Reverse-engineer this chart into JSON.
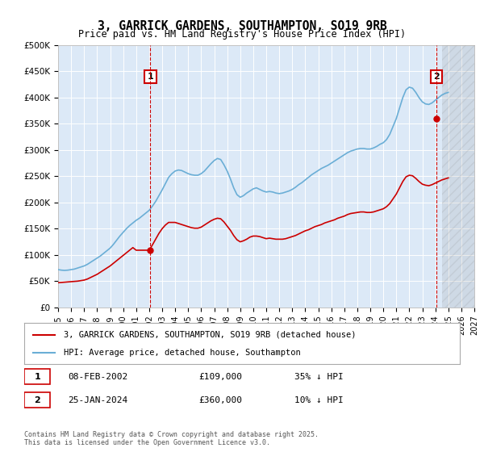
{
  "title": "3, GARRICK GARDENS, SOUTHAMPTON, SO19 9RB",
  "subtitle": "Price paid vs. HM Land Registry's House Price Index (HPI)",
  "background_color": "#dce9f7",
  "plot_bg_color": "#dce9f7",
  "hpi_color": "#6aaed6",
  "price_color": "#cc0000",
  "ylim": [
    0,
    500000
  ],
  "yticks": [
    0,
    50000,
    100000,
    150000,
    200000,
    250000,
    300000,
    350000,
    400000,
    450000,
    500000
  ],
  "ytick_labels": [
    "£0",
    "£50K",
    "£100K",
    "£150K",
    "£200K",
    "£250K",
    "£300K",
    "£350K",
    "£400K",
    "£450K",
    "£500K"
  ],
  "xlim_start": 1995.0,
  "xlim_end": 2027.0,
  "xticks": [
    1995,
    1996,
    1997,
    1998,
    1999,
    2000,
    2001,
    2002,
    2003,
    2004,
    2005,
    2006,
    2007,
    2008,
    2009,
    2010,
    2011,
    2012,
    2013,
    2014,
    2015,
    2016,
    2017,
    2018,
    2019,
    2020,
    2021,
    2022,
    2023,
    2024,
    2025,
    2026,
    2027
  ],
  "sale1_x": 2002.1,
  "sale1_y": 109000,
  "sale1_label": "1",
  "sale2_x": 2024.08,
  "sale2_y": 360000,
  "sale2_label": "2",
  "legend_house_label": "3, GARRICK GARDENS, SOUTHAMPTON, SO19 9RB (detached house)",
  "legend_hpi_label": "HPI: Average price, detached house, Southampton",
  "annotation1": "1    08-FEB-2002    £109,000    35% ↓ HPI",
  "annotation2": "2    25-JAN-2024    £360,000    10% ↓ HPI",
  "footer": "Contains HM Land Registry data © Crown copyright and database right 2025.\nThis data is licensed under the Open Government Licence v3.0.",
  "hpi_data_x": [
    1995.0,
    1995.25,
    1995.5,
    1995.75,
    1996.0,
    1996.25,
    1996.5,
    1996.75,
    1997.0,
    1997.25,
    1997.5,
    1997.75,
    1998.0,
    1998.25,
    1998.5,
    1998.75,
    1999.0,
    1999.25,
    1999.5,
    1999.75,
    2000.0,
    2000.25,
    2000.5,
    2000.75,
    2001.0,
    2001.25,
    2001.5,
    2001.75,
    2002.0,
    2002.25,
    2002.5,
    2002.75,
    2003.0,
    2003.25,
    2003.5,
    2003.75,
    2004.0,
    2004.25,
    2004.5,
    2004.75,
    2005.0,
    2005.25,
    2005.5,
    2005.75,
    2006.0,
    2006.25,
    2006.5,
    2006.75,
    2007.0,
    2007.25,
    2007.5,
    2007.75,
    2008.0,
    2008.25,
    2008.5,
    2008.75,
    2009.0,
    2009.25,
    2009.5,
    2009.75,
    2010.0,
    2010.25,
    2010.5,
    2010.75,
    2011.0,
    2011.25,
    2011.5,
    2011.75,
    2012.0,
    2012.25,
    2012.5,
    2012.75,
    2013.0,
    2013.25,
    2013.5,
    2013.75,
    2014.0,
    2014.25,
    2014.5,
    2014.75,
    2015.0,
    2015.25,
    2015.5,
    2015.75,
    2016.0,
    2016.25,
    2016.5,
    2016.75,
    2017.0,
    2017.25,
    2017.5,
    2017.75,
    2018.0,
    2018.25,
    2018.5,
    2018.75,
    2019.0,
    2019.25,
    2019.5,
    2019.75,
    2020.0,
    2020.25,
    2020.5,
    2020.75,
    2021.0,
    2021.25,
    2021.5,
    2021.75,
    2022.0,
    2022.25,
    2022.5,
    2022.75,
    2023.0,
    2023.25,
    2023.5,
    2023.75,
    2024.0,
    2024.25,
    2024.5,
    2024.75,
    2025.0
  ],
  "hpi_data_y": [
    72000,
    71000,
    70500,
    71000,
    72000,
    73000,
    75000,
    77000,
    79000,
    82000,
    86000,
    90000,
    94000,
    98000,
    103000,
    108000,
    113000,
    120000,
    128000,
    136000,
    143000,
    150000,
    156000,
    161000,
    166000,
    170000,
    175000,
    180000,
    185000,
    193000,
    202000,
    213000,
    224000,
    236000,
    248000,
    255000,
    260000,
    262000,
    261000,
    258000,
    255000,
    253000,
    252000,
    252000,
    255000,
    260000,
    267000,
    274000,
    280000,
    284000,
    282000,
    272000,
    260000,
    245000,
    228000,
    215000,
    210000,
    213000,
    218000,
    222000,
    226000,
    228000,
    225000,
    222000,
    220000,
    221000,
    220000,
    218000,
    217000,
    218000,
    220000,
    222000,
    225000,
    229000,
    234000,
    238000,
    243000,
    248000,
    253000,
    257000,
    261000,
    265000,
    268000,
    271000,
    275000,
    279000,
    283000,
    287000,
    291000,
    295000,
    298000,
    300000,
    302000,
    303000,
    303000,
    302000,
    302000,
    304000,
    307000,
    311000,
    314000,
    320000,
    330000,
    345000,
    360000,
    380000,
    400000,
    415000,
    420000,
    418000,
    410000,
    400000,
    392000,
    388000,
    387000,
    390000,
    395000,
    400000,
    405000,
    408000,
    410000
  ],
  "price_data_x": [
    1995.0,
    1995.25,
    1995.5,
    1995.75,
    1996.0,
    1996.25,
    1996.5,
    1996.75,
    1997.0,
    1997.25,
    1997.5,
    1997.75,
    1998.0,
    1998.25,
    1998.5,
    1998.75,
    1999.0,
    1999.25,
    1999.5,
    1999.75,
    2000.0,
    2000.25,
    2000.5,
    2000.75,
    2001.0,
    2001.25,
    2001.5,
    2001.75,
    2002.0,
    2002.25,
    2002.5,
    2002.75,
    2003.0,
    2003.25,
    2003.5,
    2003.75,
    2004.0,
    2004.25,
    2004.5,
    2004.75,
    2005.0,
    2005.25,
    2005.5,
    2005.75,
    2006.0,
    2006.25,
    2006.5,
    2006.75,
    2007.0,
    2007.25,
    2007.5,
    2007.75,
    2008.0,
    2008.25,
    2008.5,
    2008.75,
    2009.0,
    2009.25,
    2009.5,
    2009.75,
    2010.0,
    2010.25,
    2010.5,
    2010.75,
    2011.0,
    2011.25,
    2011.5,
    2011.75,
    2012.0,
    2012.25,
    2012.5,
    2012.75,
    2013.0,
    2013.25,
    2013.5,
    2013.75,
    2014.0,
    2014.25,
    2014.5,
    2014.75,
    2015.0,
    2015.25,
    2015.5,
    2015.75,
    2016.0,
    2016.25,
    2016.5,
    2016.75,
    2017.0,
    2017.25,
    2017.5,
    2017.75,
    2018.0,
    2018.25,
    2018.5,
    2018.75,
    2019.0,
    2019.25,
    2019.5,
    2019.75,
    2020.0,
    2020.25,
    2020.5,
    2020.75,
    2021.0,
    2021.25,
    2021.5,
    2021.75,
    2022.0,
    2022.25,
    2022.5,
    2022.75,
    2023.0,
    2023.25,
    2023.5,
    2023.75,
    2024.0,
    2024.25,
    2024.5,
    2024.75,
    2025.0
  ],
  "price_data_y": [
    47000,
    47500,
    48000,
    48500,
    49000,
    49500,
    50000,
    51000,
    52000,
    54000,
    57000,
    60000,
    63000,
    67000,
    71000,
    75000,
    79000,
    84000,
    89000,
    94000,
    99000,
    104000,
    109000,
    114000,
    109000,
    109000,
    109000,
    109000,
    109000,
    119000,
    130000,
    141000,
    150000,
    157000,
    162000,
    162000,
    162000,
    160000,
    158000,
    156000,
    154000,
    152000,
    151000,
    151000,
    153000,
    157000,
    161000,
    165000,
    168000,
    170000,
    169000,
    163000,
    155000,
    147000,
    137000,
    129000,
    125000,
    127000,
    130000,
    134000,
    136000,
    136000,
    135000,
    133000,
    131000,
    132000,
    131000,
    130000,
    130000,
    130000,
    131000,
    133000,
    135000,
    137000,
    140000,
    143000,
    146000,
    148000,
    151000,
    154000,
    156000,
    158000,
    161000,
    163000,
    165000,
    167000,
    170000,
    172000,
    174000,
    177000,
    179000,
    180000,
    181000,
    182000,
    182000,
    181000,
    181000,
    182000,
    184000,
    186000,
    188000,
    192000,
    198000,
    207000,
    216000,
    228000,
    240000,
    249000,
    252000,
    251000,
    246000,
    240000,
    235000,
    233000,
    232000,
    234000,
    237000,
    240000,
    243000,
    245000,
    247000
  ],
  "hatch_start_x": 2024.5,
  "footnote_fontsize": 6.5
}
